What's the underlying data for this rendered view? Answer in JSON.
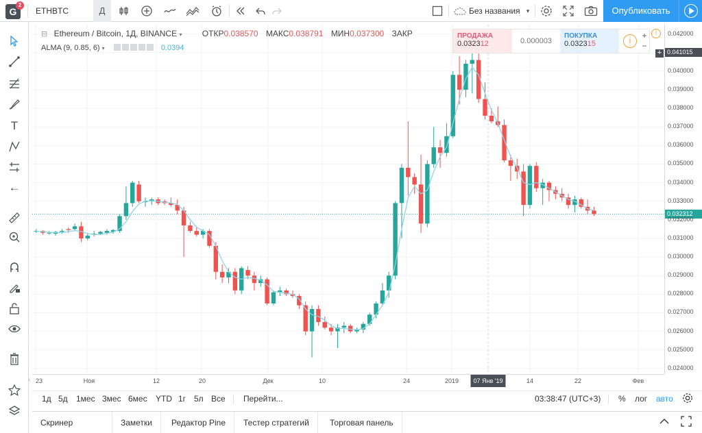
{
  "toolbar": {
    "logo_letter": "G",
    "logo_badge": "2",
    "symbol": "ETHBTC",
    "interval": "Д",
    "layout_name": "Без названия",
    "publish_label": "Опубликовать",
    "icons": [
      "bar-type-icon",
      "add-indicator-icon",
      "compare-icon",
      "indicators-icon",
      "alert-icon",
      "replay-icon",
      "undo-icon",
      "redo-icon",
      "layout-icon",
      "cloud-icon",
      "settings-icon",
      "fullscreen-icon",
      "snapshot-icon",
      "play-icon"
    ]
  },
  "left_tools": [
    "cursor-icon",
    "trendline-icon",
    "fib-icon",
    "brush-icon",
    "text-icon",
    "pattern-icon",
    "measure-icon",
    "back-arrow-icon",
    "ruler-icon",
    "zoom-icon",
    "magnet-icon",
    "lock-drawing-icon",
    "unlock-icon",
    "eye-icon",
    "trash-icon",
    "star-icon",
    "layers-icon"
  ],
  "legend": {
    "title": "Ethereum / Bitcoin, 1Д, BINANCE",
    "open_label": "ОТКР",
    "open": "0.038570",
    "high_label": "МАКС",
    "high": "0.038791",
    "low_label": "МИН",
    "low": "0.037300",
    "close_label": "ЗАКР",
    "indicator_name": "ALMA (9, 0.85, 6)",
    "indicator_value": "0.0394"
  },
  "trade": {
    "sell_label": "ПРОДАЖА",
    "sell_price": "0.032312",
    "spread": "0.000003",
    "buy_label": "ПОКУПКА",
    "buy_price": "0.032315"
  },
  "price_axis": {
    "ticks": [
      "0.042000",
      "0.041015",
      "0.040000",
      "0.039000",
      "0.038000",
      "0.037000",
      "0.036000",
      "0.035000",
      "0.034000",
      "0.033000",
      "0.032312",
      "0.032000",
      "0.031000",
      "0.030000",
      "0.029000",
      "0.028000",
      "0.027000",
      "0.026000",
      "0.025000",
      "0.024000"
    ],
    "crosshair_label": "0.041015",
    "last_label": "0.032312"
  },
  "time_axis": {
    "ticks": [
      "23",
      "Ноя",
      "12",
      "20",
      "Дек",
      "10",
      "24",
      "2019",
      "14",
      "22",
      "Фев"
    ],
    "crosshair_label": "07 Янв '19"
  },
  "range_bar": {
    "ranges": [
      "1д",
      "5д",
      "1мес",
      "3мес",
      "6мес",
      "YTD",
      "1г",
      "5л",
      "Все"
    ],
    "goto": "Перейти...",
    "clock": "03:38:47 (UTC+3)",
    "percent": "%",
    "log": "лог",
    "auto": "авто"
  },
  "bottom_tabs": [
    "Скринер акций",
    "Заметки",
    "Редактор Pine",
    "Тестер стратегий",
    "Торговая панель"
  ],
  "colors": {
    "up": "#26a69a",
    "down": "#ef5350",
    "alma": "#8fd3e8",
    "accent": "#2f9bf2",
    "last_price": "#26a69a"
  },
  "chart_data": {
    "type": "candlestick",
    "title": "Ethereum / Bitcoin, 1Д, BINANCE",
    "ylim": [
      0.0237,
      0.0425
    ],
    "x_ticks": [
      "23",
      "Ноя",
      "12",
      "20",
      "Дек",
      "10",
      "24",
      "2019",
      "14",
      "22",
      "Фев"
    ],
    "last_price": 0.032312,
    "candles": [
      [
        0.0314,
        0.0315,
        0.0313,
        0.0314
      ],
      [
        0.0314,
        0.03145,
        0.0312,
        0.0313
      ],
      [
        0.0313,
        0.0314,
        0.0312,
        0.0313
      ],
      [
        0.03125,
        0.0314,
        0.03115,
        0.03135
      ],
      [
        0.03135,
        0.0315,
        0.03125,
        0.0314
      ],
      [
        0.0315,
        0.0316,
        0.0313,
        0.03145
      ],
      [
        0.0315,
        0.0318,
        0.0314,
        0.03165
      ],
      [
        0.03165,
        0.0319,
        0.0308,
        0.031
      ],
      [
        0.031,
        0.0313,
        0.0309,
        0.03115
      ],
      [
        0.0312,
        0.0314,
        0.0311,
        0.03125
      ],
      [
        0.03125,
        0.0314,
        0.0312,
        0.03135
      ],
      [
        0.0313,
        0.0315,
        0.0312,
        0.0314
      ],
      [
        0.03135,
        0.0315,
        0.03125,
        0.03145
      ],
      [
        0.0314,
        0.0323,
        0.0313,
        0.0322
      ],
      [
        0.0322,
        0.0338,
        0.032,
        0.0329
      ],
      [
        0.0329,
        0.0341,
        0.0327,
        0.034
      ],
      [
        0.0339,
        0.0341,
        0.0329,
        0.033
      ],
      [
        0.03295,
        0.0332,
        0.0327,
        0.033
      ],
      [
        0.033,
        0.0332,
        0.0328,
        0.0331
      ],
      [
        0.0331,
        0.0332,
        0.0328,
        0.0329
      ],
      [
        0.033,
        0.0331,
        0.0328,
        0.0329
      ],
      [
        0.0329,
        0.0332,
        0.0327,
        0.0328
      ],
      [
        0.0328,
        0.0331,
        0.0323,
        0.0325
      ],
      [
        0.0325,
        0.0327,
        0.03,
        0.0317
      ],
      [
        0.0317,
        0.0319,
        0.0313,
        0.0314
      ],
      [
        0.0314,
        0.0316,
        0.0311,
        0.0312
      ],
      [
        0.0312,
        0.0315,
        0.031,
        0.0314
      ],
      [
        0.0314,
        0.0315,
        0.0305,
        0.0306
      ],
      [
        0.0306,
        0.0308,
        0.0288,
        0.0292
      ],
      [
        0.0292,
        0.0296,
        0.0286,
        0.0289
      ],
      [
        0.0289,
        0.0294,
        0.0286,
        0.0292
      ],
      [
        0.0292,
        0.0294,
        0.028,
        0.0282
      ],
      [
        0.0282,
        0.0295,
        0.028,
        0.0294
      ],
      [
        0.0293,
        0.0295,
        0.0288,
        0.029
      ],
      [
        0.029,
        0.0292,
        0.0282,
        0.0286
      ],
      [
        0.0286,
        0.029,
        0.0284,
        0.0288
      ],
      [
        0.0288,
        0.0289,
        0.0274,
        0.0275
      ],
      [
        0.0275,
        0.0282,
        0.0274,
        0.0281
      ],
      [
        0.0281,
        0.0284,
        0.0279,
        0.0282
      ],
      [
        0.0282,
        0.0283,
        0.0279,
        0.028
      ],
      [
        0.028,
        0.0282,
        0.0278,
        0.0279
      ],
      [
        0.0279,
        0.028,
        0.0272,
        0.0274
      ],
      [
        0.0274,
        0.0276,
        0.0258,
        0.026
      ],
      [
        0.026,
        0.0274,
        0.0246,
        0.0272
      ],
      [
        0.0272,
        0.0274,
        0.0263,
        0.0265
      ],
      [
        0.0265,
        0.0268,
        0.0261,
        0.0262
      ],
      [
        0.0262,
        0.0264,
        0.0258,
        0.026
      ],
      [
        0.026,
        0.0264,
        0.0251,
        0.0262
      ],
      [
        0.0262,
        0.0265,
        0.0259,
        0.0263
      ],
      [
        0.0263,
        0.0264,
        0.0259,
        0.026
      ],
      [
        0.026,
        0.0262,
        0.0259,
        0.0261
      ],
      [
        0.0261,
        0.0265,
        0.0259,
        0.0264
      ],
      [
        0.0264,
        0.027,
        0.0263,
        0.0269
      ],
      [
        0.0269,
        0.0276,
        0.0267,
        0.0275
      ],
      [
        0.0275,
        0.0286,
        0.0274,
        0.0282
      ],
      [
        0.0282,
        0.0292,
        0.0278,
        0.029
      ],
      [
        0.029,
        0.033,
        0.0288,
        0.0329
      ],
      [
        0.0329,
        0.035,
        0.031,
        0.0348
      ],
      [
        0.0348,
        0.0373,
        0.0333,
        0.0343
      ],
      [
        0.0343,
        0.0345,
        0.0334,
        0.0339
      ],
      [
        0.0339,
        0.0355,
        0.0313,
        0.0318
      ],
      [
        0.0318,
        0.0352,
        0.0316,
        0.035
      ],
      [
        0.035,
        0.037,
        0.0348,
        0.0359
      ],
      [
        0.0359,
        0.0363,
        0.0348,
        0.0356
      ],
      [
        0.0356,
        0.0372,
        0.0354,
        0.0365
      ],
      [
        0.0365,
        0.04,
        0.0364,
        0.0398
      ],
      [
        0.0398,
        0.0408,
        0.0382,
        0.039
      ],
      [
        0.039,
        0.0406,
        0.0386,
        0.0404
      ],
      [
        0.0404,
        0.041,
        0.0388,
        0.0406
      ],
      [
        0.0406,
        0.0411,
        0.0383,
        0.0385
      ],
      [
        0.0385,
        0.0394,
        0.0374,
        0.0376
      ],
      [
        0.0376,
        0.038,
        0.0372,
        0.0373
      ],
      [
        0.0373,
        0.0381,
        0.037,
        0.0371
      ],
      [
        0.0371,
        0.0374,
        0.0351,
        0.0352
      ],
      [
        0.0352,
        0.0355,
        0.0341,
        0.0349
      ],
      [
        0.0349,
        0.0353,
        0.0342,
        0.0346
      ],
      [
        0.0346,
        0.035,
        0.0322,
        0.0328
      ],
      [
        0.0328,
        0.035,
        0.0326,
        0.0349
      ],
      [
        0.0349,
        0.0351,
        0.0335,
        0.0337
      ],
      [
        0.0337,
        0.0342,
        0.0328,
        0.034
      ],
      [
        0.034,
        0.0341,
        0.033,
        0.0336
      ],
      [
        0.0336,
        0.0338,
        0.0331,
        0.0334
      ],
      [
        0.0334,
        0.0337,
        0.033,
        0.0332
      ],
      [
        0.0332,
        0.0334,
        0.0326,
        0.0328
      ],
      [
        0.0328,
        0.0333,
        0.0324,
        0.0331
      ],
      [
        0.0331,
        0.0332,
        0.0326,
        0.0327
      ],
      [
        0.0327,
        0.0331,
        0.0323,
        0.0325
      ],
      [
        0.0325,
        0.0327,
        0.0322,
        0.03231
      ]
    ],
    "alma": [
      0.03138,
      0.03136,
      0.03133,
      0.03131,
      0.03132,
      0.03136,
      0.03142,
      0.03138,
      0.03126,
      0.0312,
      0.03121,
      0.03127,
      0.03134,
      0.03152,
      0.0319,
      0.03245,
      0.03285,
      0.033,
      0.03303,
      0.033,
      0.03295,
      0.0329,
      0.03283,
      0.0325,
      0.032,
      0.0316,
      0.0314,
      0.0312,
      0.0306,
      0.0298,
      0.0292,
      0.0289,
      0.0288,
      0.0289,
      0.02885,
      0.02875,
      0.0285,
      0.02815,
      0.0281,
      0.02805,
      0.02798,
      0.02775,
      0.0272,
      0.0269,
      0.0268,
      0.0266,
      0.0263,
      0.02615,
      0.02615,
      0.02612,
      0.02608,
      0.02615,
      0.0264,
      0.0269,
      0.0274,
      0.0281,
      0.0296,
      0.0315,
      0.0332,
      0.0338,
      0.0334,
      0.0336,
      0.0346,
      0.0354,
      0.0359,
      0.0372,
      0.0385,
      0.0396,
      0.0402,
      0.0398,
      0.0388,
      0.0379,
      0.0372,
      0.0363,
      0.0354,
      0.0348,
      0.034,
      0.0339,
      0.034,
      0.0339,
      0.0337,
      0.0335,
      0.0333,
      0.0331,
      0.033,
      0.0328,
      0.0326,
      0.0325
    ]
  }
}
